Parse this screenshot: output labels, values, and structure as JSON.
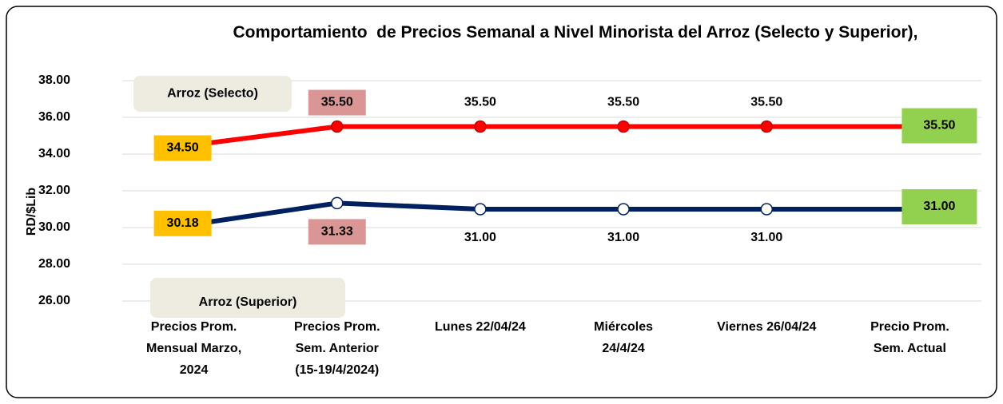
{
  "chart_data": {
    "type": "line",
    "title": "Comportamiento  de Precios Semanal a Nivel Minorista del Arroz (Selecto y Superior),",
    "y_label": "RD/$Lib",
    "categories": [
      "Precios Prom.\nMensual Marzo,\n2024",
      "Precios Prom.\nSem. Anterior\n(15-19/4/2024)",
      "Lunes  22/04/24",
      "Miércoles\n24/4/24",
      "Viernes 26/04/24",
      "Precio Prom.\nSem. Actual"
    ],
    "series": [
      {
        "name": "Arroz (Selecto)",
        "color": "#ff0000",
        "values": [
          34.5,
          35.5,
          35.5,
          35.5,
          35.5,
          35.5
        ],
        "value_labels": [
          "34.50",
          "35.50",
          "35.50",
          "35.50",
          "35.50",
          "35.50"
        ]
      },
      {
        "name": "Arroz (Superior)",
        "color": "#002060",
        "values": [
          30.18,
          31.33,
          31,
          31,
          31,
          31
        ],
        "value_labels": [
          "30.18",
          "31.33",
          "31.00",
          "31.00",
          "31.00",
          "31.00"
        ]
      }
    ],
    "ylim": [
      26,
      38
    ],
    "yticks": [
      {
        "value": 26,
        "label": "26.00"
      },
      {
        "value": 28,
        "label": "28.00"
      },
      {
        "value": 30,
        "label": "30.00"
      },
      {
        "value": 32,
        "label": "32.00"
      },
      {
        "value": 34,
        "label": "34.00"
      },
      {
        "value": 36,
        "label": "36.00"
      },
      {
        "value": 38,
        "label": "38.00"
      }
    ],
    "grid": true
  }
}
